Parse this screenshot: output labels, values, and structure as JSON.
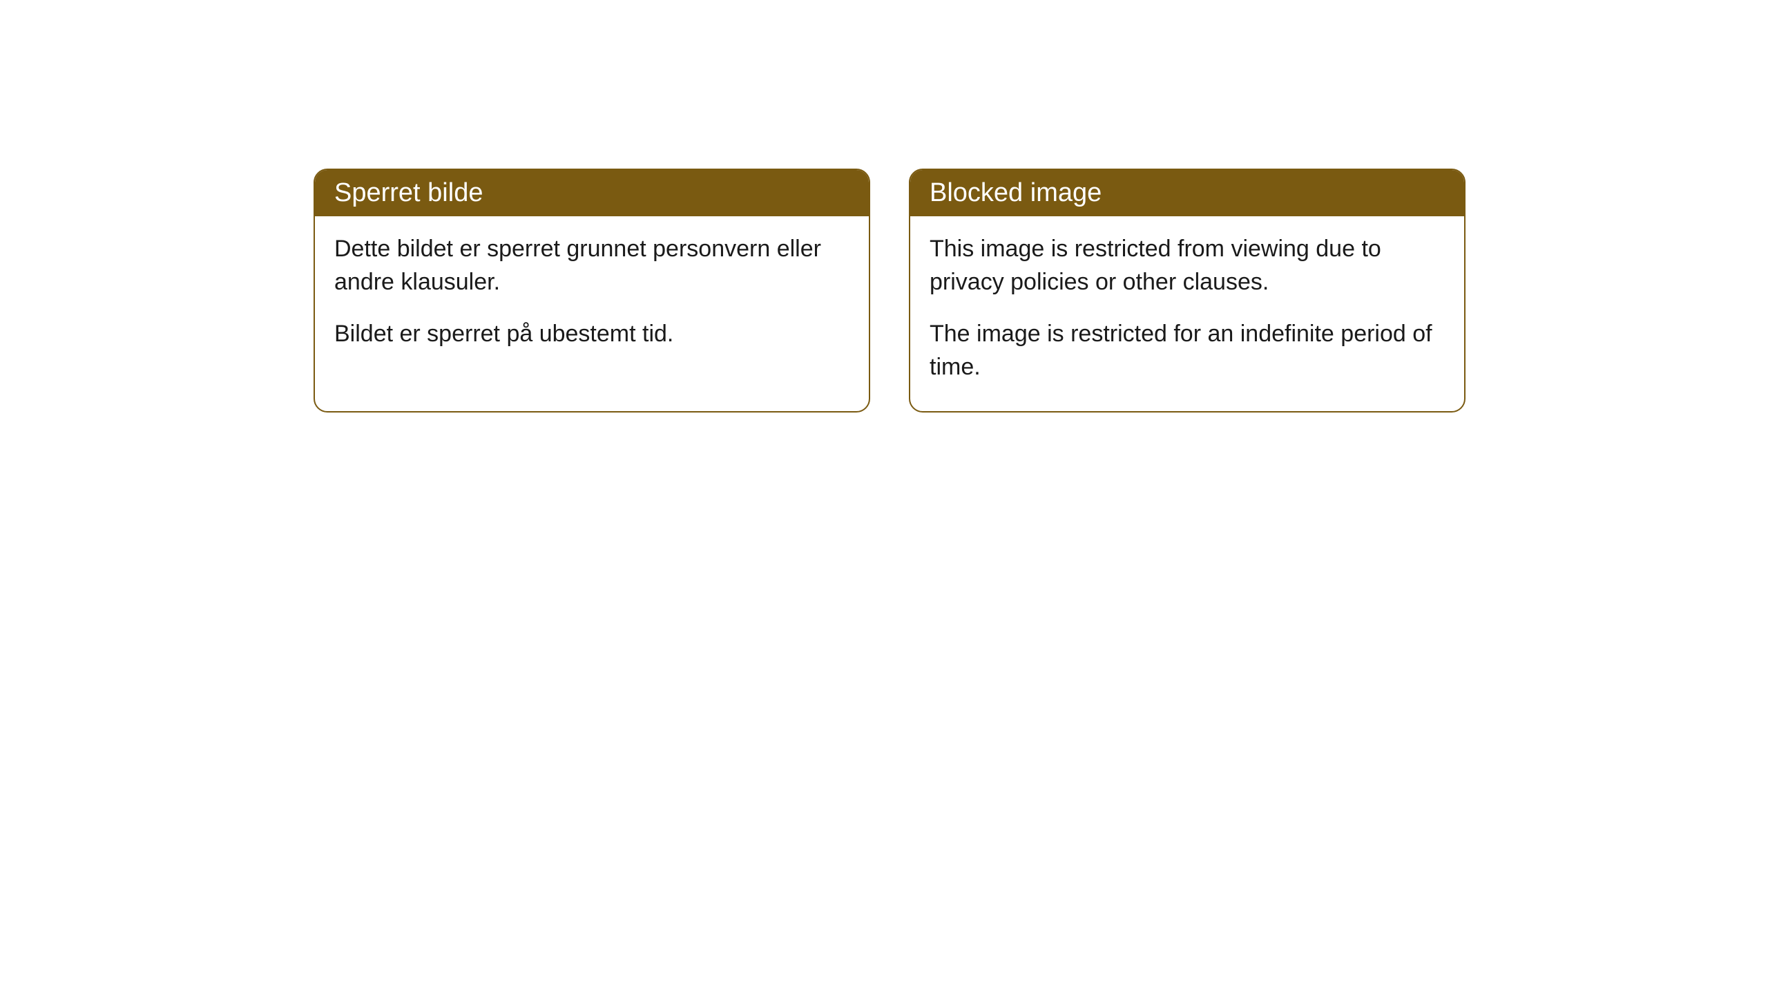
{
  "layout": {
    "background_color": "#ffffff",
    "card_border_color": "#7a5a11",
    "card_header_bg": "#7a5a11",
    "card_header_text_color": "#ffffff",
    "card_body_text_color": "#1a1a1a",
    "card_border_radius": 20,
    "header_font_size": 38,
    "body_font_size": 34
  },
  "cards": {
    "left": {
      "title": "Sperret bilde",
      "paragraph1": "Dette bildet er sperret grunnet personvern eller andre klausuler.",
      "paragraph2": "Bildet er sperret på ubestemt tid."
    },
    "right": {
      "title": "Blocked image",
      "paragraph1": "This image is restricted from viewing due to privacy policies or other clauses.",
      "paragraph2": "The image is restricted for an indefinite period of time."
    }
  }
}
